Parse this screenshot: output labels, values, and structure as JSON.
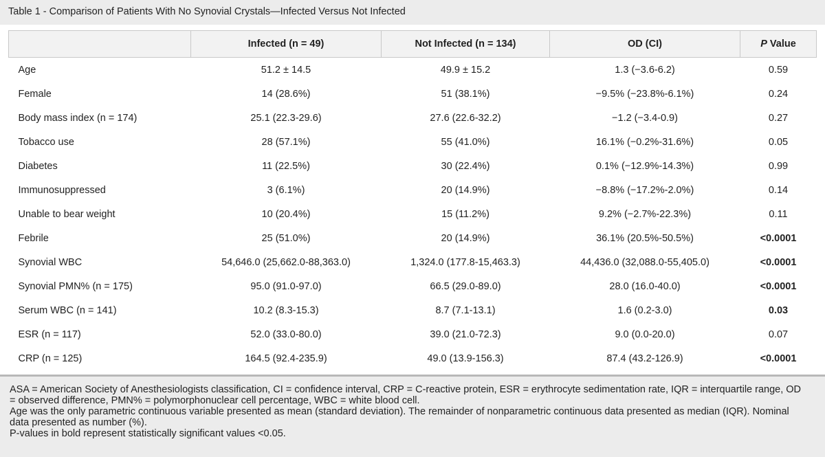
{
  "caption": "Table 1 - Comparison of Patients With No Synovial Crystals—Infected Versus Not Infected",
  "headers": {
    "blank": "",
    "infected": "Infected (n = 49)",
    "not_infected": "Not Infected (n = 134)",
    "od": "OD (CI)",
    "p_prefix": "P",
    "p_suffix": " Value"
  },
  "rows": [
    {
      "label": "Age",
      "infected": "51.2 ± 14.5",
      "not_infected": "49.9 ± 15.2",
      "od": "1.3 (−3.6-6.2)",
      "p": "0.59",
      "significant": false
    },
    {
      "label": "Female",
      "infected": "14 (28.6%)",
      "not_infected": "51 (38.1%)",
      "od": "−9.5% (−23.8%-6.1%)",
      "p": "0.24",
      "significant": false
    },
    {
      "label": "Body mass index (n = 174)",
      "infected": "25.1 (22.3-29.6)",
      "not_infected": "27.6 (22.6-32.2)",
      "od": "−1.2 (−3.4-0.9)",
      "p": "0.27",
      "significant": false
    },
    {
      "label": "Tobacco use",
      "infected": "28 (57.1%)",
      "not_infected": "55 (41.0%)",
      "od": "16.1% (−0.2%-31.6%)",
      "p": "0.05",
      "significant": false
    },
    {
      "label": "Diabetes",
      "infected": "11 (22.5%)",
      "not_infected": "30 (22.4%)",
      "od": "0.1% (−12.9%-14.3%)",
      "p": "0.99",
      "significant": false
    },
    {
      "label": "Immunosuppressed",
      "infected": "3 (6.1%)",
      "not_infected": "20 (14.9%)",
      "od": "−8.8% (−17.2%-2.0%)",
      "p": "0.14",
      "significant": false
    },
    {
      "label": "Unable to bear weight",
      "infected": "10 (20.4%)",
      "not_infected": "15 (11.2%)",
      "od": "9.2% (−2.7%-22.3%)",
      "p": "0.11",
      "significant": false
    },
    {
      "label": "Febrile",
      "infected": "25 (51.0%)",
      "not_infected": "20 (14.9%)",
      "od": "36.1% (20.5%-50.5%)",
      "p": "<0.0001",
      "significant": true
    },
    {
      "label": "Synovial WBC",
      "infected": "54,646.0 (25,662.0-88,363.0)",
      "not_infected": "1,324.0 (177.8-15,463.3)",
      "od": "44,436.0 (32,088.0-55,405.0)",
      "p": "<0.0001",
      "significant": true
    },
    {
      "label": "Synovial PMN% (n = 175)",
      "infected": "95.0 (91.0-97.0)",
      "not_infected": "66.5 (29.0-89.0)",
      "od": "28.0 (16.0-40.0)",
      "p": "<0.0001",
      "significant": true
    },
    {
      "label": "Serum WBC (n = 141)",
      "infected": "10.2 (8.3-15.3)",
      "not_infected": "8.7 (7.1-13.1)",
      "od": "1.6 (0.2-3.0)",
      "p": "0.03",
      "significant": true
    },
    {
      "label": "ESR (n = 117)",
      "infected": "52.0 (33.0-80.0)",
      "not_infected": "39.0 (21.0-72.3)",
      "od": "9.0 (0.0-20.0)",
      "p": "0.07",
      "significant": false
    },
    {
      "label": "CRP (n = 125)",
      "infected": "164.5 (92.4-235.9)",
      "not_infected": "49.0 (13.9-156.3)",
      "od": "87.4 (43.2-126.9)",
      "p": "<0.0001",
      "significant": true
    }
  ],
  "footnotes": [
    "ASA = American Society of Anesthesiologists classification, CI = confidence interval, CRP = C-reactive protein, ESR = erythrocyte sedimentation rate, IQR = interquartile range, OD = observed difference, PMN% = polymorphonuclear cell percentage, WBC = white blood cell.",
    "Age was the only parametric continuous variable presented as mean (standard deviation). The remainder of nonparametric continuous data presented as median (IQR). Nominal data presented as number (%).",
    "P-values in bold represent statistically significant values <0.05."
  ]
}
